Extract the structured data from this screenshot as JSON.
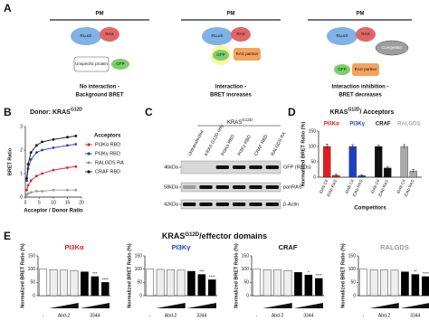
{
  "panel_labels": [
    "A",
    "B",
    "C",
    "D",
    "E"
  ],
  "diagrams": [
    {
      "membrane": "PM",
      "donor": "RLucII",
      "ras": "RAS",
      "acceptor": "GFP",
      "other": "Unspecific protein",
      "caption": [
        "No interaction -",
        "Background BRET"
      ]
    },
    {
      "membrane": "PM",
      "donor": "RLucII",
      "ras": "RAS",
      "acceptor": "GFP",
      "partner": "RAS partner",
      "caption": [
        "Interaction -",
        "BRET increases"
      ]
    },
    {
      "membrane": "PM",
      "donor": "RLucII",
      "ras": "RAS",
      "acceptor": "GFP",
      "partner": "RAS partner",
      "competitor": "Competitor",
      "caption": [
        "Interaction inhibition -",
        "BRET decreases"
      ]
    }
  ],
  "blot": {
    "header": "KRAS",
    "header_sup": "G12D",
    "lanes": [
      "Untransfected",
      "KRAS G12D only",
      "PI3Kα RBD",
      "PI3Kγ RBD",
      "CRAF RBD",
      "RALGDS RA"
    ],
    "rows": [
      {
        "size": "46kDa",
        "label": "GFP (RBDs)"
      },
      {
        "size": "58kDa",
        "label": "panRAS"
      },
      {
        "size": "42kDa",
        "label": "β-Actin"
      }
    ]
  },
  "effector_title": {
    "text": "KRAS",
    "sup": "G12D",
    "suffix": "/effector domains"
  },
  "chart_data": [
    {
      "type": "line",
      "title": "Donor: KRAS",
      "title_sup": "G12D",
      "xlabel": "Acceptor / Donor Ratio",
      "ylabel": "BRET Ratio",
      "legend_title": "Acceptors",
      "x": [
        0.5,
        1,
        2,
        4,
        6,
        10,
        15,
        18
      ],
      "xlim": [
        0,
        20
      ],
      "xticks": [
        0,
        5,
        10,
        15,
        20
      ],
      "ylim": [
        0,
        3
      ],
      "yticks": [
        0,
        1,
        2,
        3
      ],
      "series": [
        {
          "name": "PI3Kα RBD",
          "color": "#e02020",
          "values": [
            0.3,
            0.5,
            0.7,
            0.9,
            1.0,
            1.15,
            1.25,
            1.3
          ]
        },
        {
          "name": "PI3Kγ RBD",
          "color": "#2040c0",
          "values": [
            0.7,
            1.2,
            1.6,
            1.9,
            2.0,
            2.1,
            2.2,
            2.25
          ]
        },
        {
          "name": "RALGDS RA",
          "color": "#999999",
          "values": [
            0.1,
            0.15,
            0.2,
            0.25,
            0.25,
            0.3,
            0.3,
            0.3
          ]
        },
        {
          "name": "CRAF RBD",
          "color": "#111111",
          "values": [
            0.8,
            1.4,
            1.9,
            2.2,
            2.35,
            2.45,
            2.55,
            2.6
          ]
        }
      ]
    },
    {
      "type": "bar",
      "title": "KRAS",
      "title_sup": "G12D",
      "title_suffix": "/ Acceptors",
      "ylabel": "Normalized BRET Ratio (%)",
      "xlabel": "Competitors",
      "categories": [
        "PI3Kα",
        "PI3Kγ",
        "CRAF",
        "RALGDS"
      ],
      "category_colors": [
        "#e02020",
        "#2040c0",
        "#111111",
        "#aaaaaa"
      ],
      "series": [
        {
          "name": "iDAb Ctl",
          "values": [
            100,
            100,
            100,
            100
          ],
          "errors": [
            8,
            6,
            4,
            6
          ]
        },
        {
          "name": "iDAb RAS",
          "values": [
            6,
            5,
            30,
            20
          ],
          "errors": [
            3,
            3,
            4,
            5
          ]
        }
      ],
      "ylim": [
        0,
        150
      ],
      "yticks": [
        0,
        50,
        100,
        150
      ]
    },
    {
      "type": "bar",
      "title": "PI3Kα",
      "title_color": "#e02020",
      "ylabel": "Normalized BRET Ratio (%)",
      "categories": [
        "-",
        null,
        "Abd-2",
        null,
        null,
        "3344",
        null
      ],
      "values": [
        100,
        98,
        96,
        95,
        90,
        72,
        50
      ],
      "bar_colors": [
        "#ffffff",
        "#eeeeee",
        "#eeeeee",
        "#eeeeee",
        "#000000",
        "#000000",
        "#000000"
      ],
      "stars": [
        null,
        null,
        null,
        null,
        null,
        "***",
        "****"
      ],
      "ylim": [
        0,
        150
      ],
      "yticks": [
        0,
        50,
        100,
        150
      ]
    },
    {
      "type": "bar",
      "title": "PI3Kγ",
      "title_color": "#2040c0",
      "ylabel": "Normalized BRET Ratio (%)",
      "categories": [
        "-",
        null,
        "Abd-2",
        null,
        null,
        "3344",
        null
      ],
      "values": [
        100,
        99,
        97,
        96,
        92,
        80,
        60
      ],
      "bar_colors": [
        "#ffffff",
        "#eeeeee",
        "#eeeeee",
        "#eeeeee",
        "#000000",
        "#000000",
        "#000000"
      ],
      "stars": [
        null,
        null,
        null,
        null,
        null,
        "***",
        "****"
      ],
      "ylim": [
        0,
        150
      ],
      "yticks": [
        0,
        50,
        100,
        150
      ]
    },
    {
      "type": "bar",
      "title": "CRAF",
      "title_color": "#111111",
      "ylabel": "Normalized BRET Ratio (%)",
      "categories": [
        "-",
        null,
        "Abd-2",
        null,
        null,
        "3344",
        null
      ],
      "values": [
        100,
        98,
        97,
        95,
        88,
        78,
        65
      ],
      "bar_colors": [
        "#ffffff",
        "#eeeeee",
        "#eeeeee",
        "#eeeeee",
        "#000000",
        "#000000",
        "#000000"
      ],
      "stars": [
        null,
        null,
        null,
        null,
        null,
        "*",
        "****"
      ],
      "ylim": [
        0,
        150
      ],
      "yticks": [
        0,
        50,
        100,
        150
      ]
    },
    {
      "type": "bar",
      "title": "RALGDS",
      "title_color": "#999999",
      "ylabel": "Normalized BRET Ratio (%)",
      "categories": [
        "-",
        null,
        "Abd-2",
        null,
        null,
        "3344",
        null
      ],
      "values": [
        100,
        98,
        97,
        96,
        90,
        80,
        72
      ],
      "bar_colors": [
        "#ffffff",
        "#eeeeee",
        "#eeeeee",
        "#eeeeee",
        "#000000",
        "#000000",
        "#000000"
      ],
      "stars": [
        null,
        null,
        null,
        null,
        null,
        "**",
        "****"
      ],
      "ylim": [
        0,
        150
      ],
      "yticks": [
        0,
        50,
        100,
        150
      ]
    }
  ]
}
